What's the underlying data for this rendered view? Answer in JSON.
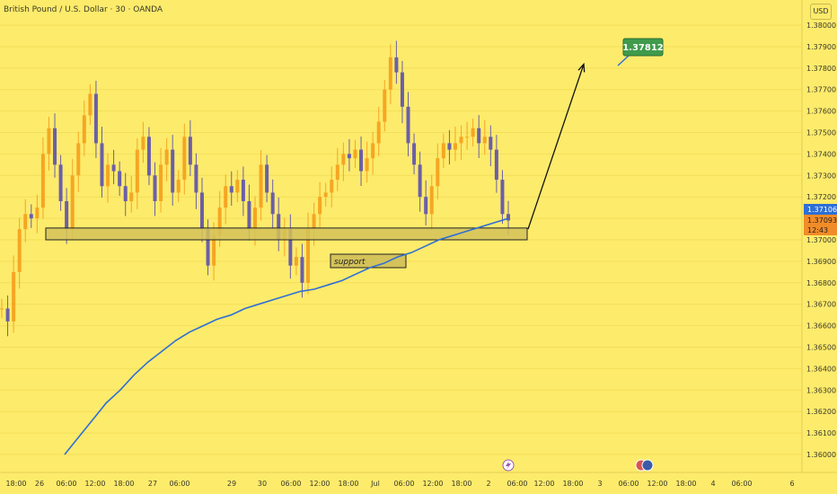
{
  "header": {
    "title": "British Pound / U.S. Dollar · 30 · OANDA",
    "currency": "USD"
  },
  "colors": {
    "background": "#fdeb6b",
    "candle": "#f5a623",
    "candle_alt": "#6b5fa8",
    "ma_line": "#2e6fd6",
    "support_zone": "#d4c25a",
    "target_badge": "#3f9b4b",
    "price_badge_blue": "#2e6fd6",
    "price_badge_orange": "#f28c28"
  },
  "chart_data": {
    "type": "line",
    "ylim": [
      1.3595,
      1.3805
    ],
    "y_ticks": [
      "1.38000",
      "1.37900",
      "1.37800",
      "1.37700",
      "1.37600",
      "1.37500",
      "1.37400",
      "1.37300",
      "1.37200",
      "1.37100",
      "1.37000",
      "1.36900",
      "1.36800",
      "1.36700",
      "1.36600",
      "1.36500",
      "1.36400",
      "1.36300",
      "1.36200",
      "1.36100",
      "1.36000"
    ],
    "y_tick_values": [
      1.38,
      1.379,
      1.378,
      1.377,
      1.376,
      1.375,
      1.374,
      1.373,
      1.372,
      1.371,
      1.37,
      1.369,
      1.368,
      1.367,
      1.366,
      1.365,
      1.364,
      1.363,
      1.362,
      1.361,
      1.36
    ],
    "x_ticks": [
      "18:00",
      "26",
      "06:00",
      "12:00",
      "18:00",
      "27",
      "06:00",
      "29",
      "30",
      "06:00",
      "12:00",
      "18:00",
      "Jul",
      "06:00",
      "12:00",
      "18:00",
      "2",
      "06:00",
      "12:00",
      "18:00",
      "3",
      "06:00",
      "12:00",
      "18:00",
      "4",
      "06:00",
      "6"
    ],
    "series": [
      {
        "price": [
          1.3668,
          1.3662,
          1.3685,
          1.3705,
          1.3712,
          1.371,
          1.3715,
          1.374,
          1.3752,
          1.3735,
          1.3718,
          1.3705,
          1.373,
          1.3745,
          1.3758,
          1.3768,
          1.3745,
          1.3725,
          1.3735,
          1.3732,
          1.3725,
          1.3718,
          1.3722,
          1.3742,
          1.3748,
          1.373,
          1.3718,
          1.3735,
          1.3742,
          1.3722,
          1.3728,
          1.3748,
          1.3735,
          1.3722,
          1.3705,
          1.3688,
          1.3702,
          1.3715,
          1.3725,
          1.3722,
          1.3728,
          1.3718,
          1.3705,
          1.3715,
          1.3735,
          1.3722,
          1.3712,
          1.37,
          1.3705,
          1.3688,
          1.3692,
          1.368,
          1.3705,
          1.3712,
          1.372,
          1.3722,
          1.3728,
          1.3735,
          1.374,
          1.3738,
          1.3742,
          1.3732,
          1.3738,
          1.3745,
          1.3755,
          1.377,
          1.3785,
          1.3778,
          1.3762,
          1.3745,
          1.3735,
          1.372,
          1.3712,
          1.3725,
          1.3738,
          1.3745,
          1.3742,
          1.3745,
          1.3748,
          1.3748,
          1.3752,
          1.3745,
          1.3748,
          1.3742,
          1.3728,
          1.3712,
          1.3709
        ],
        "ma": [
          1.36,
          1.3608,
          1.3616,
          1.3624,
          1.363,
          1.3637,
          1.3643,
          1.3648,
          1.3653,
          1.3657,
          1.366,
          1.3663,
          1.3665,
          1.3668,
          1.367,
          1.3672,
          1.3674,
          1.3676,
          1.3677,
          1.3679,
          1.3681,
          1.3684,
          1.3687,
          1.3689,
          1.3692,
          1.3694,
          1.3697,
          1.37,
          1.3702,
          1.3704,
          1.3706,
          1.3708,
          1.371
        ]
      }
    ],
    "zones": {
      "support_label": "support",
      "support_range": [
        1.37,
        1.37055
      ]
    },
    "projection": {
      "from": 1.3705,
      "to": 1.3781
    },
    "target_label": "1.37812",
    "price_labels": {
      "ma_value": "1.37106",
      "last_price": "1.37093",
      "countdown": "12:43"
    },
    "events": [
      "lightning-icon",
      "us-flag-icon"
    ]
  }
}
